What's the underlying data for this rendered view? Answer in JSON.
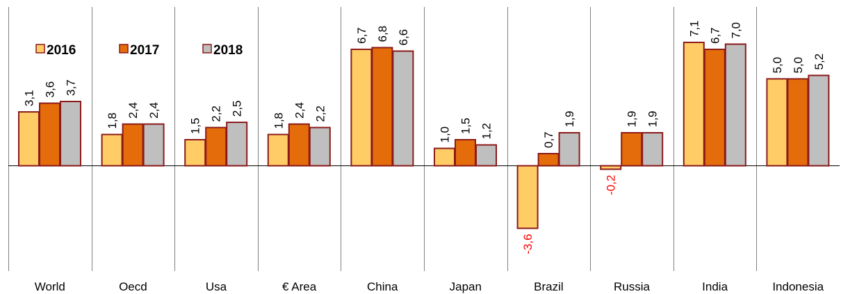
{
  "chart_data": {
    "type": "bar",
    "categories": [
      "World",
      "Oecd",
      "Usa",
      "€ Area",
      "China",
      "Japan",
      "Brazil",
      "Russia",
      "India",
      "Indonesia"
    ],
    "series": [
      {
        "name": "2016",
        "values": [
          3.1,
          1.8,
          1.5,
          1.8,
          6.7,
          1.0,
          -3.6,
          -0.2,
          7.1,
          5.0
        ],
        "labels": [
          "3,1",
          "1,8",
          "1,5",
          "1,8",
          "6,7",
          "1,0",
          "-3,6",
          "-0,2",
          "7,1",
          "5,0"
        ]
      },
      {
        "name": "2017",
        "values": [
          3.6,
          2.4,
          2.2,
          2.4,
          6.8,
          1.5,
          0.7,
          1.9,
          6.7,
          5.0
        ],
        "labels": [
          "3,6",
          "2,4",
          "2,2",
          "2,4",
          "6,8",
          "1,5",
          "0,7",
          "1,9",
          "6,7",
          "5,0"
        ]
      },
      {
        "name": "2018",
        "values": [
          3.7,
          2.4,
          2.5,
          2.2,
          6.6,
          1.2,
          1.9,
          1.9,
          7.0,
          5.2
        ],
        "labels": [
          "3,7",
          "2,4",
          "2,5",
          "2,2",
          "6,6",
          "1,2",
          "1,9",
          "1,9",
          "7,0",
          "5,2"
        ]
      }
    ],
    "colors": {
      "2016": "#FFCC66",
      "2017": "#E46C0A",
      "2018": "#BFBFBF",
      "bar_border": "#8B1A1A",
      "negative_label": "#FF0000",
      "positive_label": "#000000",
      "gridline": "#808080"
    },
    "ylim": [
      -5.8,
      9.4
    ],
    "legend_position": "top-left",
    "grid": "vertical category separators"
  }
}
